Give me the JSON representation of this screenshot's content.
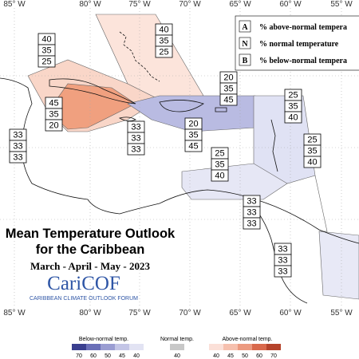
{
  "map": {
    "longitudes_top": [
      "85° W",
      "80° W",
      "75° W",
      "70° W",
      "65° W",
      "60° W",
      "55° W"
    ],
    "longitudes_bottom": [
      "85° W",
      "80° W",
      "75° W",
      "70° W",
      "65° W",
      "60° W",
      "55° W"
    ],
    "key": [
      {
        "letter": "A",
        "text": "% above-normal tempera"
      },
      {
        "letter": "N",
        "text": "% normal temperature"
      },
      {
        "letter": "B",
        "text": "% below-normal tempera"
      }
    ],
    "regions": [
      {
        "values": [
          "40",
          "35",
          "25"
        ]
      },
      {
        "values": [
          "40",
          "35",
          "25"
        ]
      },
      {
        "values": [
          "20",
          "35",
          "45"
        ]
      },
      {
        "values": [
          "45",
          "35",
          "20"
        ]
      },
      {
        "values": [
          "33",
          "33",
          "33"
        ]
      },
      {
        "values": [
          "33",
          "33",
          "33"
        ]
      },
      {
        "values": [
          "20",
          "35",
          "45"
        ]
      },
      {
        "values": [
          "25",
          "35",
          "40"
        ]
      },
      {
        "values": [
          "25",
          "35",
          "40"
        ]
      },
      {
        "values": [
          "25",
          "35",
          "40"
        ]
      },
      {
        "values": [
          "33",
          "33",
          "33"
        ]
      },
      {
        "values": [
          "33",
          "33",
          "33"
        ]
      }
    ],
    "title": {
      "line1": "Mean Temperature Outlook",
      "line2": "for the Caribbean",
      "season": "March - April - May - 2023"
    },
    "logo": {
      "name": "CariCOF",
      "subtitle": "CARIBBEAN CLIMATE OUTLOOK FORUM"
    },
    "legend": {
      "below_label": "Below-normal temp.",
      "below_ticks": [
        "70",
        "60",
        "50",
        "45",
        "40"
      ],
      "normal_label": "Normal temp.",
      "normal_ticks": [
        "40"
      ],
      "above_label": "Above-normal temp.",
      "above_ticks": [
        "40",
        "45",
        "50",
        "60",
        "70"
      ]
    }
  }
}
